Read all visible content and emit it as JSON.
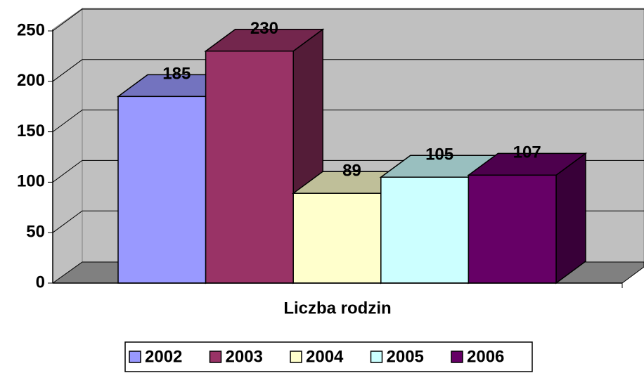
{
  "chart_data": {
    "type": "bar3d",
    "categories": [
      "Liczba rodzin"
    ],
    "series": [
      {
        "name": "2002",
        "color": "#9999ff",
        "values": [
          185
        ]
      },
      {
        "name": "2003",
        "color": "#993366",
        "values": [
          230
        ]
      },
      {
        "name": "2004",
        "color": "#ffffcc",
        "values": [
          89
        ]
      },
      {
        "name": "2005",
        "color": "#ccffff",
        "values": [
          105
        ]
      },
      {
        "name": "2006",
        "color": "#660066",
        "values": [
          107
        ]
      }
    ],
    "ylim": [
      0,
      250
    ],
    "yticks": [
      0,
      50,
      100,
      150,
      200,
      250
    ],
    "grid": true,
    "legend": "bottom"
  }
}
